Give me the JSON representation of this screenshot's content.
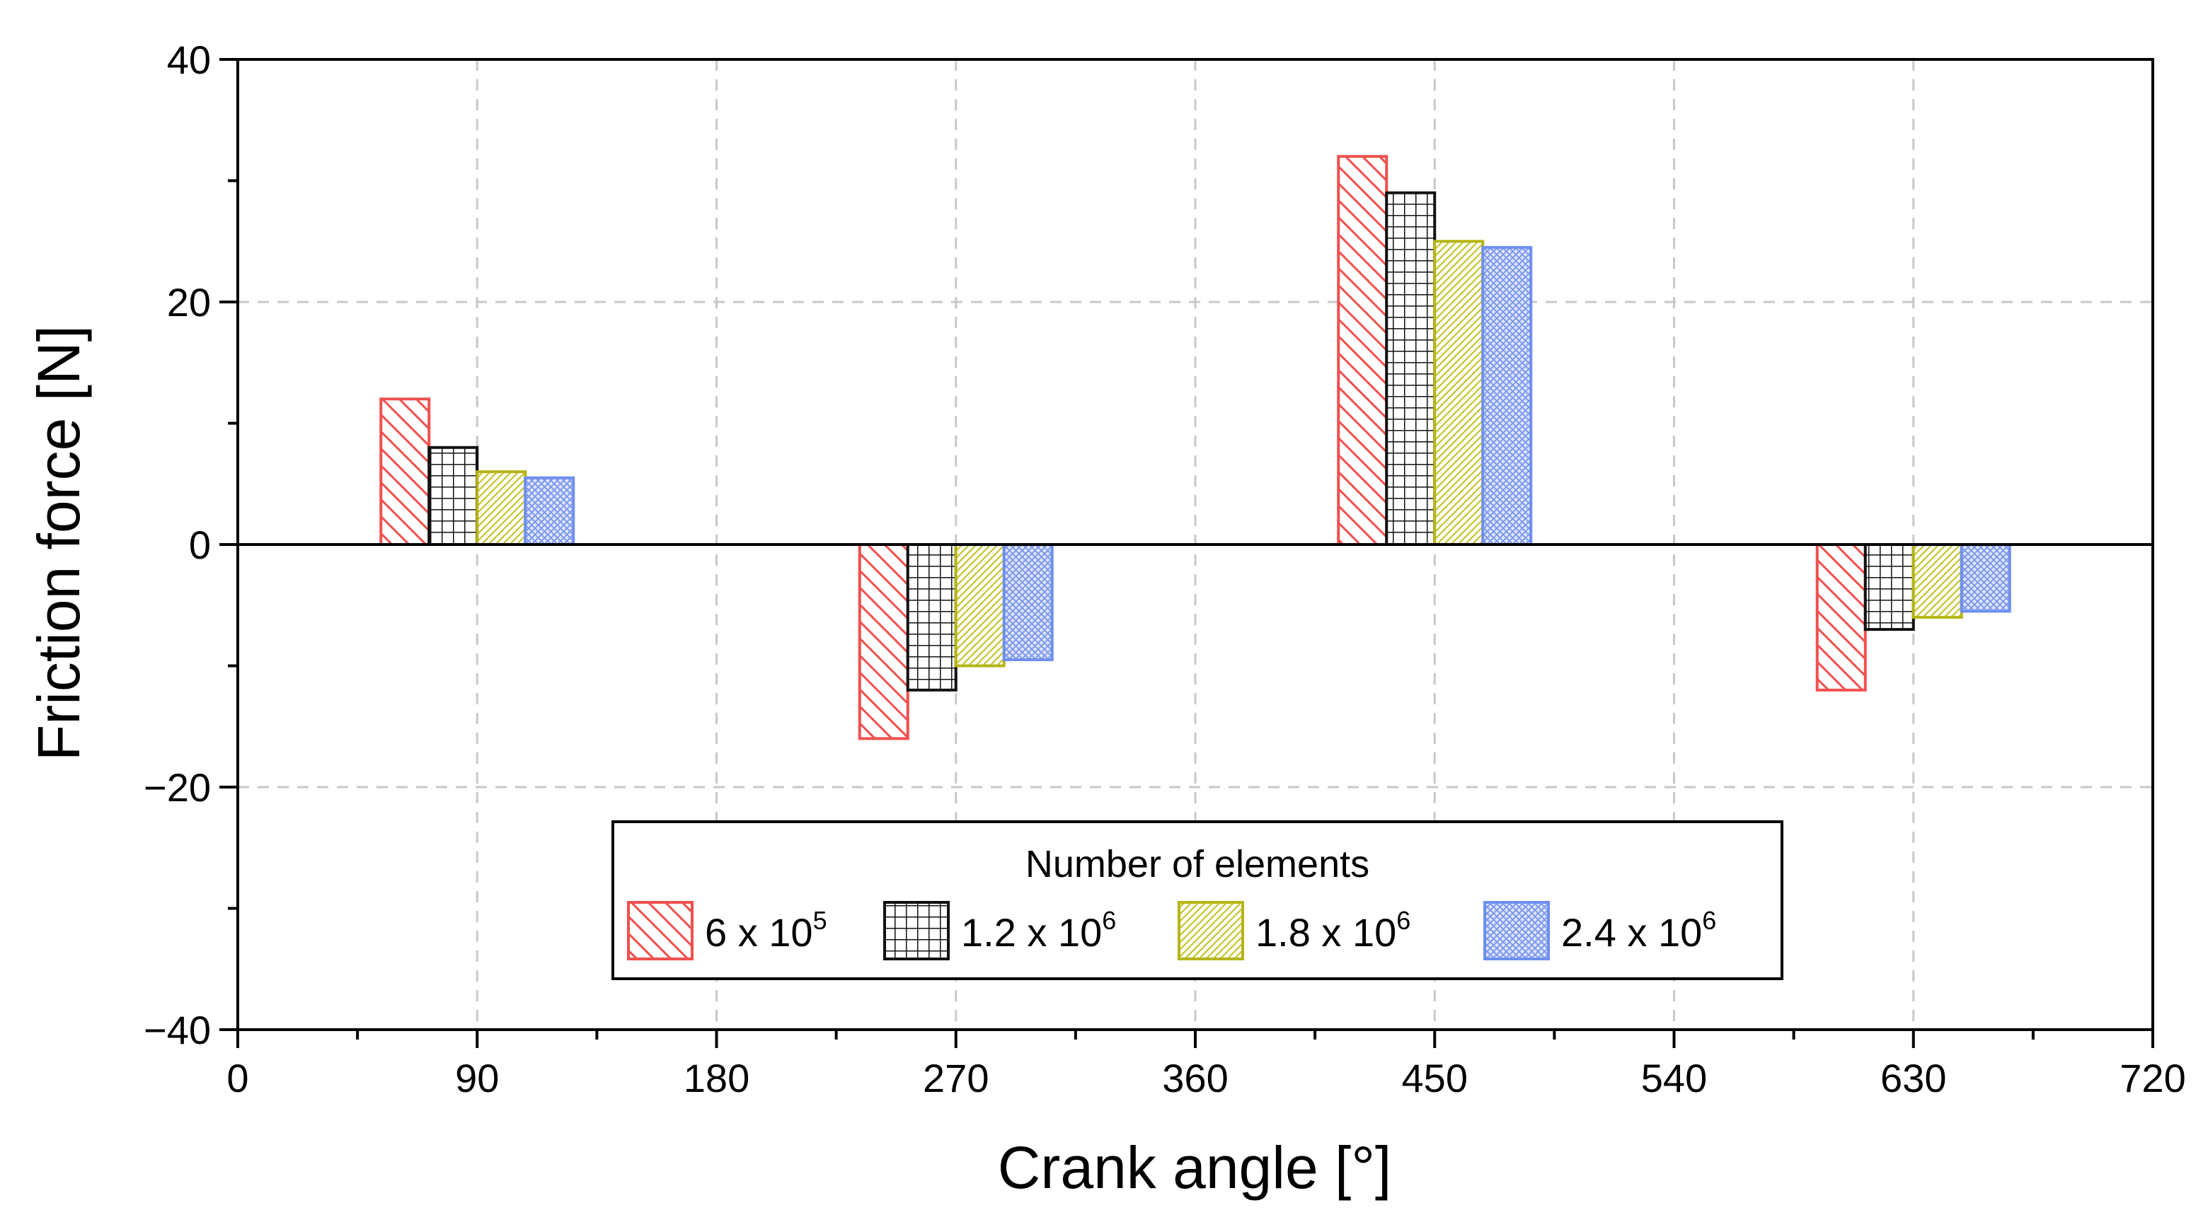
{
  "chart_data": {
    "type": "bar",
    "title": "",
    "xlabel": "Crank angle [°]",
    "ylabel": "Friction force [N]",
    "xlim": [
      0,
      720
    ],
    "ylim": [
      -40,
      40
    ],
    "xticks": [
      0,
      90,
      180,
      270,
      360,
      450,
      540,
      630,
      720
    ],
    "yticks": [
      -40,
      -20,
      0,
      20,
      40
    ],
    "xtick_labels": [
      "0",
      "90",
      "180",
      "270",
      "360",
      "450",
      "540",
      "630",
      "720"
    ],
    "ytick_labels": [
      "−40",
      "−20",
      "0",
      "20",
      "40"
    ],
    "grid": true,
    "categories": [
      90,
      270,
      450,
      630
    ],
    "series": [
      {
        "name": "6 x 10^5",
        "base": "6 x 10",
        "exp": "5",
        "color": "#f0504f",
        "pattern": "diagonal",
        "values": [
          12,
          -16,
          32,
          -12
        ]
      },
      {
        "name": "1.2 x 10^6",
        "base": "1.2 x 10",
        "exp": "6",
        "color": "#111111",
        "pattern": "grid",
        "values": [
          8,
          -12,
          29,
          -7
        ]
      },
      {
        "name": "1.8 x 10^6",
        "base": "1.8 x 10",
        "exp": "6",
        "color": "#b5b516",
        "pattern": "fine-diagonal",
        "values": [
          6,
          -10,
          25,
          -6
        ]
      },
      {
        "name": "2.4 x 10^6",
        "base": "2.4 x 10",
        "exp": "6",
        "color": "#6f8ff0",
        "pattern": "crosshatch",
        "values": [
          5.5,
          -9.5,
          24.5,
          -5.5
        ]
      }
    ],
    "legend": {
      "title": "Number of elements",
      "position": "bottom-center"
    }
  }
}
